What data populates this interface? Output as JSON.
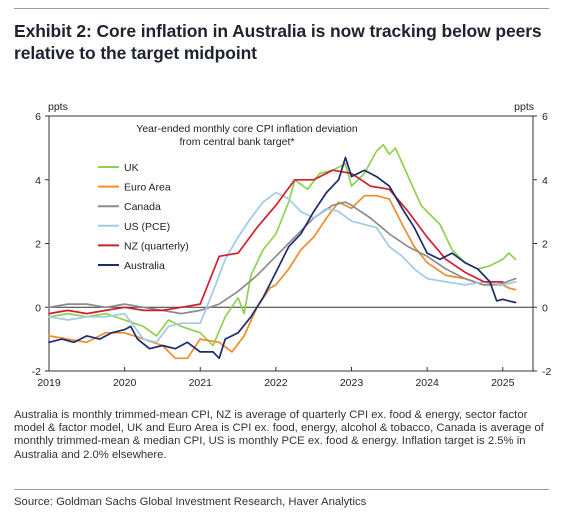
{
  "header": {
    "title": "Exhibit 2: Core inflation in Australia is now tracking below peers relative to the target midpoint"
  },
  "footnote": "Australia is monthly trimmed-mean CPI, NZ is average of quarterly CPI ex. food & energy, sector factor model & factor model, UK and Euro Area is CPI ex. food, energy, alcohol & tobacco, Canada is average of monthly trimmed-mean & median CPI, US is monthly PCE ex. food & energy. Inflation target is 2.5% in Australia and 2.0% elsewhere.",
  "source": "Source: Goldman Sachs Global Investment Research, Haver Analytics",
  "chart_data": {
    "type": "line",
    "title": "Year-ended monthly core CPI inflation deviation from central bank target*",
    "title_lines": [
      "Year-ended monthly core CPI inflation deviation",
      "from central bank target*"
    ],
    "ylabel_left": "ppts",
    "ylabel_right": "ppts",
    "xlim": [
      2019.0,
      2025.4
    ],
    "ylim": [
      -2,
      6
    ],
    "yticks": [
      -2,
      0,
      2,
      4,
      6
    ],
    "xticks": [
      2019,
      2020,
      2021,
      2022,
      2023,
      2024,
      2025
    ],
    "ytick_labels": [
      "-2",
      "0",
      "2",
      "4",
      "6"
    ],
    "xtick_labels": [
      "2019",
      "2020",
      "2021",
      "2022",
      "2023",
      "2024",
      "2025"
    ],
    "zero_line": true,
    "grid": false,
    "legend_position": "top-left",
    "series": [
      {
        "name": "UK",
        "color": "#8fd14f",
        "points": [
          [
            2019.0,
            -0.3
          ],
          [
            2019.25,
            -0.2
          ],
          [
            2019.5,
            -0.3
          ],
          [
            2019.75,
            -0.2
          ],
          [
            2020.0,
            -0.4
          ],
          [
            2020.25,
            -0.6
          ],
          [
            2020.42,
            -0.9
          ],
          [
            2020.58,
            -0.4
          ],
          [
            2020.75,
            -0.6
          ],
          [
            2021.0,
            -0.8
          ],
          [
            2021.17,
            -1.2
          ],
          [
            2021.33,
            -0.3
          ],
          [
            2021.5,
            0.3
          ],
          [
            2021.58,
            -0.2
          ],
          [
            2021.67,
            1.0
          ],
          [
            2021.83,
            1.8
          ],
          [
            2022.0,
            2.3
          ],
          [
            2022.17,
            3.3
          ],
          [
            2022.25,
            4.0
          ],
          [
            2022.42,
            3.7
          ],
          [
            2022.58,
            4.2
          ],
          [
            2022.75,
            4.3
          ],
          [
            2022.92,
            4.5
          ],
          [
            2023.0,
            3.8
          ],
          [
            2023.17,
            4.2
          ],
          [
            2023.33,
            4.9
          ],
          [
            2023.42,
            5.1
          ],
          [
            2023.5,
            4.8
          ],
          [
            2023.58,
            5.0
          ],
          [
            2023.75,
            4.1
          ],
          [
            2023.92,
            3.2
          ],
          [
            2024.0,
            3.0
          ],
          [
            2024.17,
            2.6
          ],
          [
            2024.33,
            1.8
          ],
          [
            2024.5,
            1.4
          ],
          [
            2024.67,
            1.2
          ],
          [
            2024.83,
            1.3
          ],
          [
            2025.0,
            1.5
          ],
          [
            2025.08,
            1.7
          ],
          [
            2025.17,
            1.5
          ]
        ]
      },
      {
        "name": "Euro Area",
        "color": "#f28c28",
        "points": [
          [
            2019.0,
            -0.9
          ],
          [
            2019.25,
            -1.0
          ],
          [
            2019.5,
            -1.1
          ],
          [
            2019.75,
            -0.8
          ],
          [
            2020.0,
            -0.8
          ],
          [
            2020.25,
            -1.0
          ],
          [
            2020.5,
            -1.2
          ],
          [
            2020.67,
            -1.6
          ],
          [
            2020.83,
            -1.6
          ],
          [
            2021.0,
            -1.0
          ],
          [
            2021.25,
            -1.1
          ],
          [
            2021.42,
            -1.4
          ],
          [
            2021.58,
            -0.9
          ],
          [
            2021.75,
            0.0
          ],
          [
            2021.92,
            0.6
          ],
          [
            2022.0,
            0.7
          ],
          [
            2022.17,
            1.2
          ],
          [
            2022.33,
            1.8
          ],
          [
            2022.5,
            2.2
          ],
          [
            2022.67,
            2.8
          ],
          [
            2022.83,
            3.3
          ],
          [
            2023.0,
            3.1
          ],
          [
            2023.17,
            3.5
          ],
          [
            2023.33,
            3.5
          ],
          [
            2023.5,
            3.4
          ],
          [
            2023.67,
            2.6
          ],
          [
            2023.83,
            1.9
          ],
          [
            2024.0,
            1.4
          ],
          [
            2024.25,
            1.0
          ],
          [
            2024.5,
            0.9
          ],
          [
            2024.75,
            0.7
          ],
          [
            2025.0,
            0.7
          ],
          [
            2025.08,
            0.6
          ],
          [
            2025.17,
            0.55
          ]
        ]
      },
      {
        "name": "Canada",
        "color": "#8c8c8c",
        "points": [
          [
            2019.0,
            0.0
          ],
          [
            2019.25,
            0.1
          ],
          [
            2019.5,
            0.1
          ],
          [
            2019.75,
            0.0
          ],
          [
            2020.0,
            0.1
          ],
          [
            2020.25,
            0.0
          ],
          [
            2020.5,
            -0.1
          ],
          [
            2020.75,
            -0.2
          ],
          [
            2021.0,
            -0.1
          ],
          [
            2021.25,
            0.1
          ],
          [
            2021.5,
            0.5
          ],
          [
            2021.75,
            1.0
          ],
          [
            2022.0,
            1.6
          ],
          [
            2022.25,
            2.2
          ],
          [
            2022.5,
            2.8
          ],
          [
            2022.75,
            3.2
          ],
          [
            2022.92,
            3.3
          ],
          [
            2023.0,
            3.2
          ],
          [
            2023.25,
            2.8
          ],
          [
            2023.5,
            2.3
          ],
          [
            2023.75,
            1.9
          ],
          [
            2024.0,
            1.6
          ],
          [
            2024.25,
            1.2
          ],
          [
            2024.5,
            0.9
          ],
          [
            2024.75,
            0.7
          ],
          [
            2025.0,
            0.75
          ],
          [
            2025.17,
            0.9
          ]
        ]
      },
      {
        "name": "US (PCE)",
        "color": "#9fcbe8",
        "points": [
          [
            2019.0,
            -0.3
          ],
          [
            2019.25,
            -0.4
          ],
          [
            2019.5,
            -0.3
          ],
          [
            2019.75,
            -0.3
          ],
          [
            2020.0,
            -0.2
          ],
          [
            2020.25,
            -1.0
          ],
          [
            2020.42,
            -1.1
          ],
          [
            2020.58,
            -0.6
          ],
          [
            2020.75,
            -0.5
          ],
          [
            2021.0,
            -0.5
          ],
          [
            2021.17,
            0.5
          ],
          [
            2021.33,
            1.5
          ],
          [
            2021.5,
            2.2
          ],
          [
            2021.67,
            2.8
          ],
          [
            2021.83,
            3.3
          ],
          [
            2022.0,
            3.6
          ],
          [
            2022.17,
            3.4
          ],
          [
            2022.33,
            3.0
          ],
          [
            2022.5,
            2.8
          ],
          [
            2022.67,
            3.1
          ],
          [
            2022.83,
            3.0
          ],
          [
            2023.0,
            2.7
          ],
          [
            2023.17,
            2.6
          ],
          [
            2023.33,
            2.5
          ],
          [
            2023.5,
            1.9
          ],
          [
            2023.67,
            1.6
          ],
          [
            2023.83,
            1.2
          ],
          [
            2024.0,
            0.9
          ],
          [
            2024.25,
            0.8
          ],
          [
            2024.5,
            0.7
          ],
          [
            2024.75,
            0.8
          ],
          [
            2025.0,
            0.7
          ],
          [
            2025.17,
            0.8
          ]
        ]
      },
      {
        "name": "NZ (quarterly)",
        "color": "#d0202e",
        "points": [
          [
            2019.0,
            -0.2
          ],
          [
            2019.25,
            -0.1
          ],
          [
            2019.5,
            -0.2
          ],
          [
            2019.75,
            -0.1
          ],
          [
            2020.0,
            0.0
          ],
          [
            2020.25,
            -0.1
          ],
          [
            2020.5,
            -0.1
          ],
          [
            2020.75,
            0.0
          ],
          [
            2021.0,
            0.1
          ],
          [
            2021.25,
            1.6
          ],
          [
            2021.5,
            1.7
          ],
          [
            2021.75,
            2.5
          ],
          [
            2022.0,
            3.2
          ],
          [
            2022.25,
            4.0
          ],
          [
            2022.5,
            4.0
          ],
          [
            2022.75,
            4.3
          ],
          [
            2023.0,
            4.2
          ],
          [
            2023.25,
            3.8
          ],
          [
            2023.5,
            3.7
          ],
          [
            2023.75,
            3.0
          ],
          [
            2024.0,
            2.2
          ],
          [
            2024.25,
            1.5
          ],
          [
            2024.5,
            1.1
          ],
          [
            2024.75,
            0.8
          ],
          [
            2025.0,
            0.8
          ]
        ]
      },
      {
        "name": "Australia",
        "color": "#1b2c6b",
        "points": [
          [
            2019.0,
            -1.1
          ],
          [
            2019.17,
            -1.0
          ],
          [
            2019.33,
            -1.1
          ],
          [
            2019.5,
            -0.9
          ],
          [
            2019.67,
            -1.0
          ],
          [
            2019.83,
            -0.8
          ],
          [
            2020.0,
            -0.7
          ],
          [
            2020.08,
            -0.6
          ],
          [
            2020.17,
            -1.0
          ],
          [
            2020.33,
            -1.3
          ],
          [
            2020.5,
            -1.2
          ],
          [
            2020.67,
            -1.3
          ],
          [
            2020.83,
            -1.1
          ],
          [
            2021.0,
            -1.4
          ],
          [
            2021.17,
            -1.4
          ],
          [
            2021.25,
            -1.6
          ],
          [
            2021.33,
            -1.0
          ],
          [
            2021.5,
            -0.8
          ],
          [
            2021.67,
            -0.3
          ],
          [
            2021.83,
            0.3
          ],
          [
            2022.0,
            1.1
          ],
          [
            2022.17,
            1.9
          ],
          [
            2022.33,
            2.3
          ],
          [
            2022.5,
            3.0
          ],
          [
            2022.67,
            3.6
          ],
          [
            2022.83,
            4.0
          ],
          [
            2022.92,
            4.7
          ],
          [
            2023.0,
            4.1
          ],
          [
            2023.17,
            4.3
          ],
          [
            2023.33,
            4.1
          ],
          [
            2023.5,
            3.8
          ],
          [
            2023.67,
            3.1
          ],
          [
            2023.83,
            2.5
          ],
          [
            2024.0,
            1.7
          ],
          [
            2024.17,
            1.5
          ],
          [
            2024.33,
            1.7
          ],
          [
            2024.5,
            1.4
          ],
          [
            2024.67,
            1.2
          ],
          [
            2024.83,
            0.8
          ],
          [
            2024.92,
            0.2
          ],
          [
            2025.0,
            0.25
          ],
          [
            2025.08,
            0.2
          ],
          [
            2025.17,
            0.15
          ]
        ]
      }
    ]
  }
}
